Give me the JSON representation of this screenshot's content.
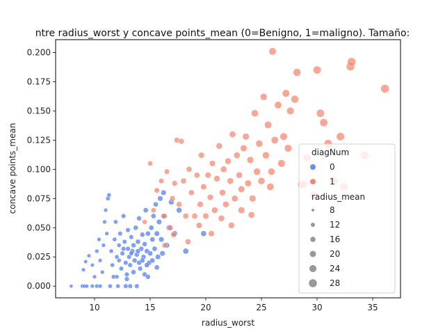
{
  "chart_data": {
    "type": "scatter",
    "title": "ntre radius_worst y concave points_mean (0=Benigno, 1=maligno). Tamaño:",
    "xlabel": "radius_worst",
    "ylabel": "concave points_mean",
    "xlim": [
      6.5,
      37.5
    ],
    "ylim": [
      -0.01,
      0.211
    ],
    "x_ticks": [
      10,
      15,
      20,
      25,
      30,
      35
    ],
    "y_ticks": [
      0.0,
      0.025,
      0.05,
      0.075,
      0.1,
      0.125,
      0.15,
      0.175,
      0.2
    ],
    "x_tick_labels": [
      "10",
      "15",
      "20",
      "25",
      "30",
      "35"
    ],
    "y_tick_labels": [
      "0.000",
      "0.025",
      "0.050",
      "0.075",
      "0.100",
      "0.125",
      "0.150",
      "0.175",
      "0.200"
    ],
    "grid": false,
    "legend": {
      "placement": "lower-right",
      "hue_title": "diagNum",
      "hue_entries": [
        {
          "label": "0",
          "color": "#6a8ef0"
        },
        {
          "label": "1",
          "color": "#f28a73"
        }
      ],
      "size_title": "radius_mean",
      "size_entries": [
        "8",
        "12",
        "16",
        "20",
        "24",
        "28"
      ]
    },
    "colors": {
      "0": "#4a78f0",
      "1": "#f5826a",
      "size_legend": "#999999"
    },
    "series": [
      {
        "name": "0",
        "points": [
          [
            7.9,
            0.0,
            8
          ],
          [
            8.9,
            0.0,
            9
          ],
          [
            9.1,
            0.0,
            9
          ],
          [
            9.3,
            0.0,
            9
          ],
          [
            9.8,
            0.0,
            9
          ],
          [
            10.2,
            0.0,
            10
          ],
          [
            10.5,
            0.0,
            10
          ],
          [
            11.4,
            0.0,
            11
          ],
          [
            12.1,
            0.0,
            11
          ],
          [
            12.8,
            0.0,
            12
          ],
          [
            13.2,
            0.0,
            12
          ],
          [
            13.8,
            0.0,
            12
          ],
          [
            9.0,
            0.014,
            9
          ],
          [
            9.2,
            0.021,
            9
          ],
          [
            9.5,
            0.026,
            9
          ],
          [
            9.8,
            0.018,
            9
          ],
          [
            10.0,
            0.008,
            9
          ],
          [
            10.2,
            0.03,
            10
          ],
          [
            10.5,
            0.022,
            10
          ],
          [
            10.7,
            0.012,
            10
          ],
          [
            10.8,
            0.035,
            10
          ],
          [
            10.9,
            0.055,
            10
          ],
          [
            11.0,
            0.065,
            10
          ],
          [
            11.2,
            0.075,
            11
          ],
          [
            11.3,
            0.078,
            11
          ],
          [
            11.5,
            0.03,
            11
          ],
          [
            11.6,
            0.018,
            11
          ],
          [
            11.8,
            0.04,
            11
          ],
          [
            11.9,
            0.055,
            11
          ],
          [
            12.0,
            0.025,
            11
          ],
          [
            12.0,
            0.008,
            11
          ],
          [
            12.2,
            0.035,
            11
          ],
          [
            12.3,
            0.045,
            12
          ],
          [
            12.4,
            0.015,
            12
          ],
          [
            12.5,
            0.028,
            12
          ],
          [
            12.6,
            0.06,
            12
          ],
          [
            12.7,
            0.038,
            12
          ],
          [
            12.8,
            0.02,
            12
          ],
          [
            12.9,
            0.01,
            12
          ],
          [
            13.0,
            0.032,
            12
          ],
          [
            13.0,
            0.048,
            12
          ],
          [
            13.1,
            0.025,
            12
          ],
          [
            13.2,
            0.018,
            12
          ],
          [
            13.3,
            0.042,
            12
          ],
          [
            13.4,
            0.03,
            13
          ],
          [
            13.5,
            0.035,
            13
          ],
          [
            13.5,
            0.012,
            13
          ],
          [
            13.6,
            0.022,
            13
          ],
          [
            13.7,
            0.05,
            13
          ],
          [
            13.8,
            0.027,
            13
          ],
          [
            13.9,
            0.038,
            13
          ],
          [
            14.0,
            0.02,
            13
          ],
          [
            14.0,
            0.058,
            13
          ],
          [
            14.1,
            0.015,
            13
          ],
          [
            14.2,
            0.032,
            13
          ],
          [
            14.3,
            0.044,
            13
          ],
          [
            14.4,
            0.025,
            13
          ],
          [
            14.5,
            0.01,
            13
          ],
          [
            14.5,
            0.036,
            13
          ],
          [
            14.6,
            0.065,
            14
          ],
          [
            14.7,
            0.03,
            14
          ],
          [
            14.8,
            0.045,
            14
          ],
          [
            14.9,
            0.02,
            14
          ],
          [
            15.0,
            0.028,
            14
          ],
          [
            15.1,
            0.05,
            14
          ],
          [
            15.2,
            0.04,
            14
          ],
          [
            15.3,
            0.06,
            14
          ],
          [
            15.4,
            0.032,
            14
          ],
          [
            15.5,
            0.07,
            14
          ],
          [
            15.6,
            0.045,
            15
          ],
          [
            15.7,
            0.025,
            15
          ],
          [
            15.8,
            0.055,
            15
          ],
          [
            15.9,
            0.075,
            15
          ],
          [
            16.0,
            0.04,
            15
          ],
          [
            16.2,
            0.08,
            15
          ],
          [
            16.3,
            0.06,
            15
          ],
          [
            16.5,
            0.035,
            15
          ],
          [
            16.7,
            0.05,
            16
          ],
          [
            16.9,
            0.072,
            16
          ],
          [
            17.2,
            0.045,
            16
          ],
          [
            17.6,
            0.065,
            16
          ],
          [
            18.2,
            0.03,
            17
          ],
          [
            19.8,
            0.045,
            17
          ],
          [
            12.2,
            0.022,
            11
          ],
          [
            12.6,
            0.032,
            12
          ],
          [
            13.3,
            0.028,
            12
          ],
          [
            13.9,
            0.03,
            13
          ],
          [
            14.3,
            0.022,
            13
          ],
          [
            14.7,
            0.018,
            14
          ],
          [
            15.2,
            0.022,
            14
          ],
          [
            15.6,
            0.016,
            14
          ],
          [
            16.1,
            0.028,
            15
          ],
          [
            11.7,
            0.008,
            11
          ],
          [
            12.9,
            0.006,
            12
          ],
          [
            14.8,
            0.008,
            13
          ],
          [
            10.4,
            0.04,
            10
          ],
          [
            11.1,
            0.045,
            10
          ]
        ]
      },
      {
        "name": "1",
        "points": [
          [
            14.5,
            0.055,
            13
          ],
          [
            15.0,
            0.105,
            14
          ],
          [
            15.3,
            0.065,
            14
          ],
          [
            15.6,
            0.082,
            15
          ],
          [
            16.0,
            0.09,
            15
          ],
          [
            16.2,
            0.06,
            15
          ],
          [
            16.5,
            0.098,
            15
          ],
          [
            16.8,
            0.05,
            16
          ],
          [
            17.0,
            0.075,
            16
          ],
          [
            17.2,
            0.088,
            16
          ],
          [
            17.4,
            0.125,
            16
          ],
          [
            17.6,
            0.07,
            16
          ],
          [
            17.8,
            0.124,
            16
          ],
          [
            18.0,
            0.09,
            17
          ],
          [
            18.2,
            0.06,
            17
          ],
          [
            18.5,
            0.1,
            17
          ],
          [
            18.7,
            0.08,
            17
          ],
          [
            19.0,
            0.06,
            17
          ],
          [
            19.2,
            0.095,
            17
          ],
          [
            19.5,
            0.07,
            18
          ],
          [
            19.6,
            0.112,
            18
          ],
          [
            19.8,
            0.085,
            18
          ],
          [
            20.0,
            0.06,
            18
          ],
          [
            20.2,
            0.095,
            18
          ],
          [
            20.4,
            0.076,
            18
          ],
          [
            20.6,
            0.105,
            18
          ],
          [
            20.8,
            0.065,
            19
          ],
          [
            21.0,
            0.092,
            19
          ],
          [
            21.2,
            0.12,
            19
          ],
          [
            21.5,
            0.08,
            19
          ],
          [
            21.6,
            0.1,
            19
          ],
          [
            21.8,
            0.07,
            19
          ],
          [
            22.0,
            0.107,
            20
          ],
          [
            22.2,
            0.09,
            20
          ],
          [
            22.4,
            0.13,
            20
          ],
          [
            22.6,
            0.075,
            20
          ],
          [
            22.8,
            0.112,
            20
          ],
          [
            23.0,
            0.095,
            20
          ],
          [
            23.2,
            0.065,
            21
          ],
          [
            23.4,
            0.118,
            21
          ],
          [
            23.6,
            0.128,
            21
          ],
          [
            23.8,
            0.088,
            21
          ],
          [
            24.0,
            0.108,
            21
          ],
          [
            24.2,
            0.075,
            21
          ],
          [
            24.4,
            0.148,
            22
          ],
          [
            24.6,
            0.098,
            22
          ],
          [
            24.8,
            0.122,
            22
          ],
          [
            25.0,
            0.09,
            22
          ],
          [
            25.2,
            0.162,
            22
          ],
          [
            25.4,
            0.112,
            22
          ],
          [
            25.6,
            0.138,
            23
          ],
          [
            25.8,
            0.085,
            23
          ],
          [
            26.0,
            0.201,
            23
          ],
          [
            26.2,
            0.125,
            23
          ],
          [
            26.5,
            0.155,
            23
          ],
          [
            26.8,
            0.105,
            24
          ],
          [
            27.0,
            0.128,
            24
          ],
          [
            27.2,
            0.165,
            24
          ],
          [
            27.6,
            0.15,
            24
          ],
          [
            28.0,
            0.16,
            25
          ],
          [
            28.2,
            0.183,
            25
          ],
          [
            28.8,
            0.087,
            25
          ],
          [
            29.1,
            0.11,
            25
          ],
          [
            29.7,
            0.078,
            26
          ],
          [
            30.0,
            0.185,
            26
          ],
          [
            30.3,
            0.148,
            26
          ],
          [
            30.6,
            0.14,
            26
          ],
          [
            31.0,
            0.122,
            27
          ],
          [
            31.5,
            0.09,
            27
          ],
          [
            32.1,
            0.128,
            27
          ],
          [
            32.4,
            0.085,
            27
          ],
          [
            33.0,
            0.188,
            28
          ],
          [
            33.1,
            0.192,
            28
          ],
          [
            34.3,
            0.112,
            28
          ],
          [
            36.1,
            0.169,
            28
          ],
          [
            18.4,
            0.038,
            17
          ],
          [
            20.5,
            0.045,
            18
          ],
          [
            22.3,
            0.052,
            19
          ],
          [
            24.1,
            0.061,
            20
          ],
          [
            17.1,
            0.044,
            16
          ],
          [
            16.3,
            0.035,
            15
          ],
          [
            19.4,
            0.052,
            18
          ],
          [
            21.4,
            0.058,
            19
          ],
          [
            23.2,
            0.083,
            21
          ],
          [
            25.9,
            0.098,
            22
          ],
          [
            27.4,
            0.118,
            24
          ],
          [
            28.6,
            0.087,
            25
          ]
        ]
      }
    ]
  }
}
